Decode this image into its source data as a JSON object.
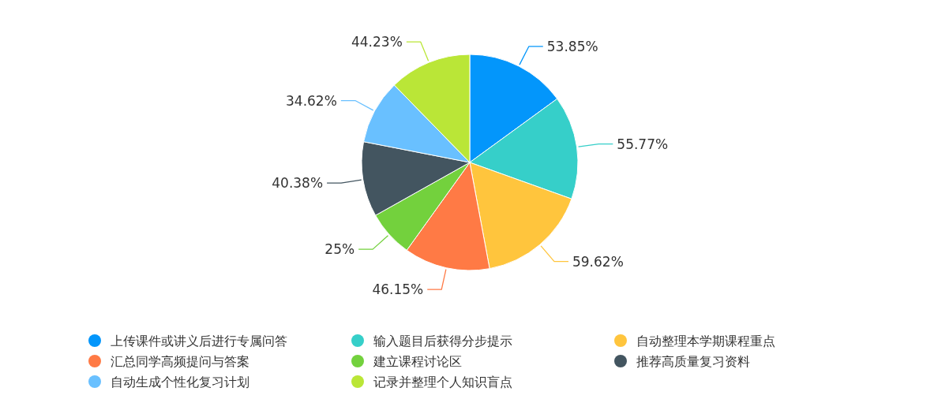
{
  "chart_data": {
    "type": "pie",
    "categories": [
      "上传课件或讲义后进行专属问答",
      "输入题目后获得分步提示",
      "自动整理本学期课程重点",
      "汇总同学高频提问与答案",
      "建立课程讨论区",
      "推荐高质量复习资料",
      "自动生成个性化复习计划",
      "记录并整理个人知识盲点"
    ],
    "values": [
      53.85,
      55.77,
      59.62,
      46.15,
      25,
      40.38,
      34.62,
      44.23
    ],
    "value_labels": [
      "53.85%",
      "55.77%",
      "59.62%",
      "46.15%",
      "25%",
      "40.38%",
      "34.62%",
      "44.23%"
    ],
    "colors": [
      "#0396fb",
      "#36cfc9",
      "#ffc53d",
      "#ff7a45",
      "#73d13d",
      "#435560",
      "#69c0ff",
      "#bae637"
    ],
    "legend": "bottom"
  }
}
